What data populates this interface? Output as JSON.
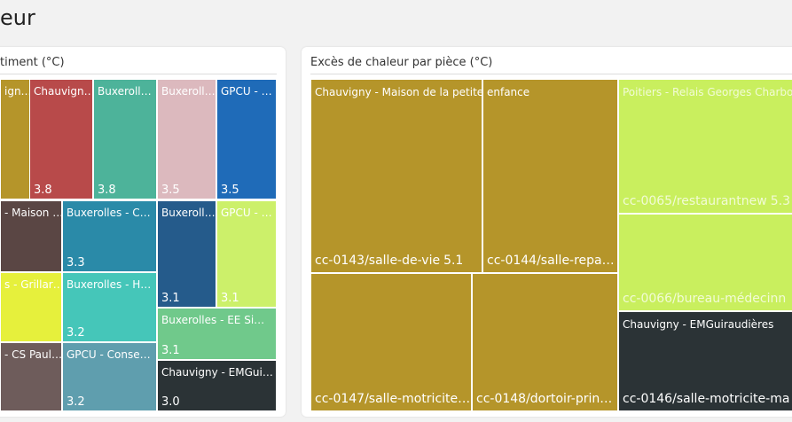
{
  "header": {
    "title": "eur"
  },
  "panels": [
    {
      "title": "timent (°C)",
      "tiles": [
        {
          "label": "ign…",
          "color": "#b5952a"
        },
        {
          "label": "Chauvign…",
          "value": 3.8,
          "color": "#b84a4a"
        },
        {
          "label": "Buxeroll…",
          "value": 3.8,
          "color": "#4db39a"
        },
        {
          "label": "Buxeroll…",
          "value": 3.5,
          "color": "#dcb9be"
        },
        {
          "label": "GPCU - …",
          "value": 3.5,
          "color": "#1f6bb8"
        },
        {
          "label": "- Maison …",
          "color": "#5a4644"
        },
        {
          "label": "Buxerolles - C…",
          "value": 3.3,
          "color": "#2a8aa8"
        },
        {
          "label": "Buxeroll…",
          "value": 3.1,
          "color": "#255b8b"
        },
        {
          "label": "GPCU - …",
          "value": 3.1,
          "color": "#ccf06a"
        },
        {
          "label": "s - Grillar…",
          "color": "#e6f03c"
        },
        {
          "label": "Buxerolles - H…",
          "value": 3.2,
          "color": "#45c6b9"
        },
        {
          "label": "Buxerolles - EE Si…",
          "value": 3.1,
          "color": "#70c98b"
        },
        {
          "label": "- CS Paul…",
          "color": "#6e5c5b"
        },
        {
          "label": "GPCU - Conse…",
          "value": 3.2,
          "color": "#5f9eae"
        },
        {
          "label": "Chauvigny - EMGui…",
          "value": 3.0,
          "value_label": "3.0",
          "color": "#2b3336"
        }
      ]
    },
    {
      "title": "Excès de chaleur par pièce (°C)",
      "groups": [
        {
          "label": "Chauvigny - Maison de la petite enfance",
          "color": "#b5952a",
          "tiles": [
            {
              "label": "cc-0143/salle-de-vie",
              "value": 5.1
            },
            {
              "label": "cc-0144/salle-repa…"
            },
            {
              "label": "cc-0147/salle-motricite…"
            },
            {
              "label": "cc-0148/dortoir-prin…"
            }
          ]
        },
        {
          "label": "Poitiers - Relais Georges Charbo",
          "color": "#c9ef5e",
          "tiles": [
            {
              "label": "cc-0065/restaurantnew",
              "value": 5.3
            },
            {
              "label": "cc-0066/bureau-médecinn"
            }
          ]
        },
        {
          "label": "Chauvigny - EMGuiraudières",
          "color": "#2b3336",
          "tiles": [
            {
              "label": "cc-0146/salle-motricite-ma"
            }
          ]
        }
      ]
    }
  ]
}
